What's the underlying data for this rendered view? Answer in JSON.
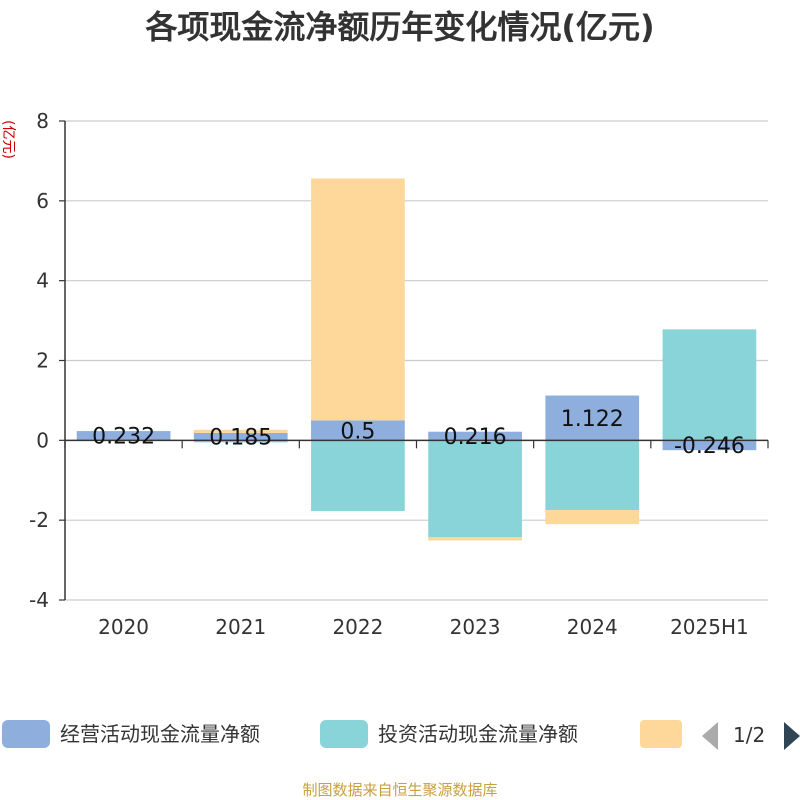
{
  "title": "各项现金流净额历年变化情况(亿元)",
  "unit_label": "(亿元)",
  "source": "制图数据来自恒生聚源数据库",
  "legend": {
    "items": [
      "经营活动现金流量净额",
      "投资活动现金流量净额",
      ""
    ],
    "pager": "1/2"
  },
  "chart_data": {
    "type": "bar",
    "stacked": true,
    "title": "各项现金流净额历年变化情况(亿元)",
    "ylabel": "(亿元)",
    "ylim": [
      -4,
      8
    ],
    "yticks": [
      -4,
      -2,
      0,
      2,
      4,
      6,
      8
    ],
    "grid": true,
    "legend_position": "bottom",
    "categories": [
      "2020",
      "2021",
      "2022",
      "2023",
      "2024",
      "2025H1"
    ],
    "series": [
      {
        "name": "经营活动现金流量净额",
        "color": "#8eaede",
        "values": [
          0.232,
          0.185,
          0.5,
          0.216,
          1.122,
          -0.246
        ],
        "labels": [
          "0.232",
          "0.185",
          "0.5",
          "0.216",
          "1.122",
          "-0.246"
        ]
      },
      {
        "name": "投资活动现金流量净额",
        "color": "#88d4d8",
        "values": [
          0.0,
          -0.05,
          -1.77,
          -2.43,
          -1.75,
          2.78
        ]
      },
      {
        "color": "#fdd89a",
        "values": [
          0.0,
          0.08,
          6.06,
          -0.08,
          -0.35,
          0.0
        ]
      }
    ]
  }
}
